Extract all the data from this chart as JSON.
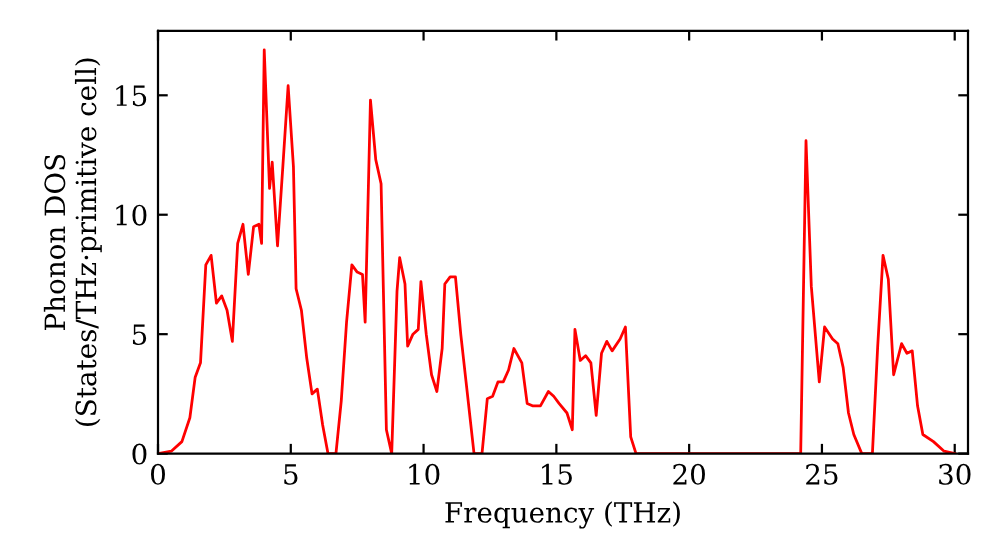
{
  "chart_data": {
    "type": "line",
    "xlabel": "Frequency (THz)",
    "ylabel": "Phonon DOS\n(States/THz·primitive cell)",
    "xlim": [
      0,
      30.5
    ],
    "ylim": [
      0,
      17.7
    ],
    "xticks": [
      0,
      5,
      10,
      15,
      20,
      25,
      30
    ],
    "yticks": [
      0,
      5,
      10,
      15
    ],
    "grid": false,
    "legend": false,
    "marker": "none",
    "line_style": "solid",
    "series": [
      {
        "color": "#ff0000",
        "x": [
          0,
          0.5,
          0.9,
          1.2,
          1.4,
          1.6,
          1.8,
          2.0,
          2.2,
          2.4,
          2.6,
          2.8,
          3.0,
          3.2,
          3.4,
          3.6,
          3.8,
          3.9,
          4.0,
          4.2,
          4.3,
          4.5,
          4.7,
          4.9,
          5.1,
          5.2,
          5.4,
          5.6,
          5.8,
          6.0,
          6.2,
          6.4,
          6.7,
          6.9,
          7.1,
          7.3,
          7.5,
          7.7,
          7.8,
          8.0,
          8.2,
          8.4,
          8.6,
          8.8,
          9.0,
          9.1,
          9.3,
          9.4,
          9.6,
          9.8,
          9.9,
          10.1,
          10.3,
          10.5,
          10.7,
          10.8,
          11.0,
          11.2,
          11.4,
          11.6,
          11.9,
          12.2,
          12.4,
          12.6,
          12.8,
          13.0,
          13.2,
          13.4,
          13.7,
          13.9,
          14.1,
          14.4,
          14.7,
          14.9,
          15.1,
          15.4,
          15.6,
          15.7,
          15.9,
          16.1,
          16.3,
          16.5,
          16.7,
          16.9,
          17.1,
          17.4,
          17.6,
          17.8,
          18.0,
          24.2,
          24.4,
          24.6,
          24.9,
          25.1,
          25.4,
          25.6,
          25.8,
          26.0,
          26.2,
          26.5,
          26.9,
          27.1,
          27.3,
          27.5,
          27.7,
          28.0,
          28.2,
          28.4,
          28.6,
          28.8,
          29.2,
          29.6,
          30.0
        ],
        "values": [
          0,
          0.1,
          0.5,
          1.5,
          3.2,
          3.8,
          7.9,
          8.3,
          6.3,
          6.6,
          6.0,
          4.7,
          8.8,
          9.6,
          7.5,
          9.5,
          9.6,
          8.8,
          16.9,
          11.1,
          12.2,
          8.7,
          12.0,
          15.4,
          12,
          6.9,
          6.0,
          4.0,
          2.5,
          2.7,
          1.2,
          0,
          0,
          2.2,
          5.5,
          7.9,
          7.6,
          7.5,
          5.5,
          14.8,
          12.3,
          11.3,
          1.0,
          0,
          6.8,
          8.2,
          7.1,
          4.5,
          5.0,
          5.2,
          7.2,
          5.0,
          3.3,
          2.6,
          4.4,
          7.1,
          7.4,
          7.4,
          5.0,
          3.0,
          0,
          0,
          2.3,
          2.4,
          3.0,
          3.0,
          3.5,
          4.4,
          3.8,
          2.1,
          2.0,
          2.0,
          2.6,
          2.4,
          2.1,
          1.7,
          1.0,
          5.2,
          3.9,
          4.1,
          3.8,
          1.6,
          4.2,
          4.7,
          4.3,
          4.8,
          5.3,
          0.7,
          0,
          0,
          13.1,
          7,
          3.0,
          5.3,
          4.8,
          4.6,
          3.6,
          1.7,
          0.8,
          0,
          0,
          4.5,
          8.3,
          7.3,
          3.3,
          4.6,
          4.2,
          4.3,
          2.0,
          0.8,
          0.5,
          0.1,
          0
        ]
      }
    ]
  }
}
